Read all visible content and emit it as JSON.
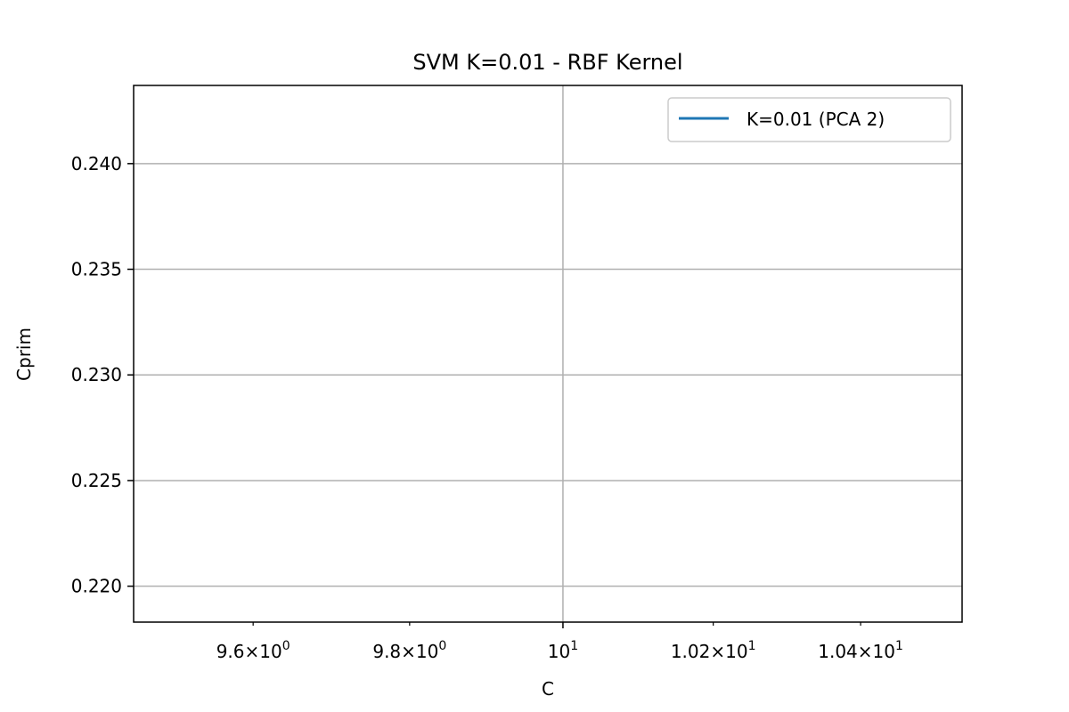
{
  "chart_data": {
    "type": "line",
    "title": "SVM K=0.01 - RBF Kernel",
    "xlabel": "C",
    "ylabel": "Cprim",
    "x_scale": "log",
    "xlim": [
      9.45,
      10.54
    ],
    "ylim": [
      0.2183,
      0.2437
    ],
    "x_ticks": [
      {
        "value": 9.6,
        "mantissa": "9.6",
        "base": "10",
        "exp": "0"
      },
      {
        "value": 9.8,
        "mantissa": "9.8",
        "base": "10",
        "exp": "0"
      },
      {
        "value": 10.0,
        "mantissa": "",
        "base": "10",
        "exp": "1"
      },
      {
        "value": 10.2,
        "mantissa": "1.02",
        "base": "10",
        "exp": "1"
      },
      {
        "value": 10.4,
        "mantissa": "1.04",
        "base": "10",
        "exp": "1"
      }
    ],
    "y_ticks": [
      {
        "value": 0.22,
        "label": "0.220"
      },
      {
        "value": 0.225,
        "label": "0.225"
      },
      {
        "value": 0.23,
        "label": "0.230"
      },
      {
        "value": 0.235,
        "label": "0.235"
      },
      {
        "value": 0.24,
        "label": "0.240"
      }
    ],
    "grid": true,
    "legend_position": "top-right",
    "series": [
      {
        "name": "K=0.01 (PCA 2)",
        "color": "#1f77b4",
        "x": [],
        "y": []
      }
    ]
  }
}
